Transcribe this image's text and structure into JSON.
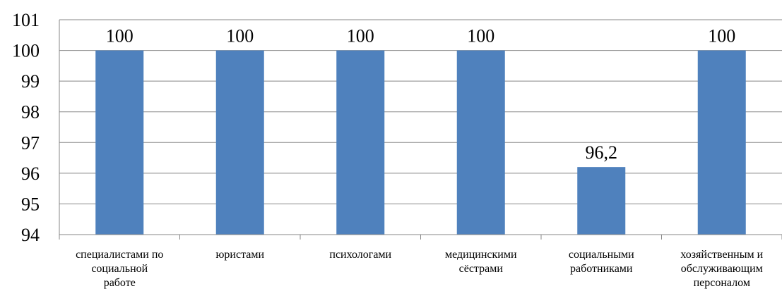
{
  "chart_data": {
    "type": "bar",
    "categories": [
      [
        "специалистами по",
        "социальной",
        "работе"
      ],
      [
        "юристами"
      ],
      [
        "психологами"
      ],
      [
        "медицинскими",
        "сёстрами"
      ],
      [
        "социальными",
        "работниками"
      ],
      [
        "хозяйственным и",
        "обслуживающим",
        "персоналом"
      ]
    ],
    "values": [
      100,
      100,
      100,
      100,
      96.2,
      100
    ],
    "data_labels": [
      "100",
      "100",
      "100",
      "100",
      "96,2",
      "100"
    ],
    "ylim": [
      94,
      101
    ],
    "yticks": [
      94,
      95,
      96,
      97,
      98,
      99,
      100,
      101
    ],
    "title": "",
    "xlabel": "",
    "ylabel": "",
    "grid": "horizontal",
    "legend": "none",
    "colors": {
      "bar": "#4f81bd",
      "grid": "#878787",
      "axis": "#878787"
    }
  }
}
